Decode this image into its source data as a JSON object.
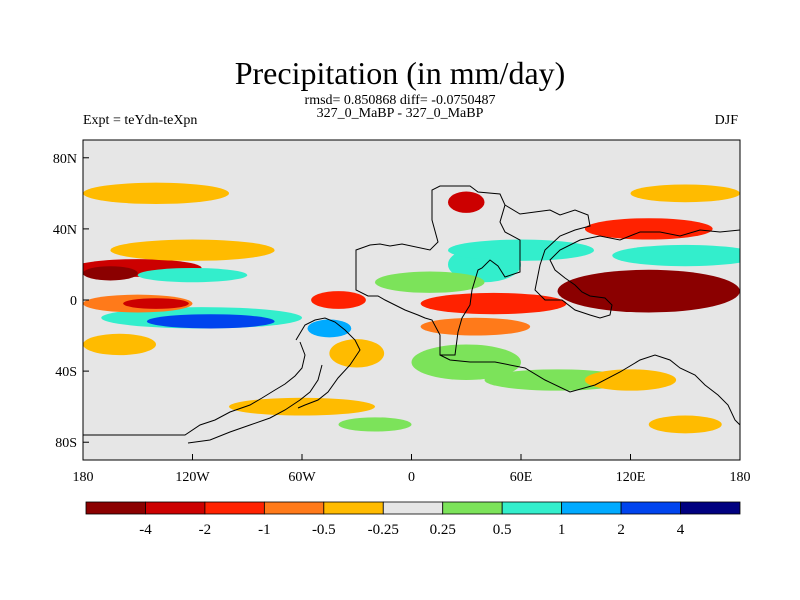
{
  "title": "Precipitation (in mm/day)",
  "stats": "rmsd= 0.850868 diff= -0.0750487",
  "subtitle": "327_0_MaBP - 327_0_MaBP",
  "left_string": "Expt = teYdn-teXpn",
  "right_string": "DJF",
  "chart_data": {
    "type": "heatmap",
    "title": "Precipitation (in mm/day)",
    "projection": "cylindrical-equidistant",
    "xlim": [
      -180,
      180
    ],
    "ylim": [
      -90,
      90
    ],
    "x_ticks": [
      {
        "value": -180,
        "label": "180"
      },
      {
        "value": -120,
        "label": "120W"
      },
      {
        "value": -60,
        "label": "60W"
      },
      {
        "value": 0,
        "label": "0"
      },
      {
        "value": 60,
        "label": "60E"
      },
      {
        "value": 120,
        "label": "120E"
      },
      {
        "value": 180,
        "label": "180"
      }
    ],
    "y_ticks": [
      {
        "value": 80,
        "label": "80N"
      },
      {
        "value": 40,
        "label": "40N"
      },
      {
        "value": 0,
        "label": "0"
      },
      {
        "value": -40,
        "label": "40S"
      },
      {
        "value": -80,
        "label": "80S"
      }
    ],
    "colorbar": {
      "levels": [
        "-4",
        "-2",
        "-1",
        "-0.5",
        "-0.25",
        "0.25",
        "0.5",
        "1",
        "2",
        "4"
      ],
      "colors": [
        "#8b0000",
        "#cc0000",
        "#ff2200",
        "#ff7a1a",
        "#ffbb00",
        "#e6e6e6",
        "#7ce35a",
        "#33eecc",
        "#00aaff",
        "#0044ee",
        "#000080"
      ]
    },
    "anomalies": [
      {
        "lon": -150,
        "lat": 18,
        "rx": 35,
        "ry": 5,
        "level": 1
      },
      {
        "lon": -165,
        "lat": 15,
        "rx": 15,
        "ry": 4,
        "level": 0
      },
      {
        "lon": -120,
        "lat": 28,
        "rx": 45,
        "ry": 6,
        "level": 4
      },
      {
        "lon": -140,
        "lat": 60,
        "rx": 40,
        "ry": 6,
        "level": 4
      },
      {
        "lon": -120,
        "lat": 14,
        "rx": 30,
        "ry": 4,
        "level": 7
      },
      {
        "lon": -115,
        "lat": -10,
        "rx": 55,
        "ry": 6,
        "level": 7
      },
      {
        "lon": -110,
        "lat": -12,
        "rx": 35,
        "ry": 4,
        "level": 9
      },
      {
        "lon": -150,
        "lat": -2,
        "rx": 30,
        "ry": 5,
        "level": 3
      },
      {
        "lon": -140,
        "lat": -2,
        "rx": 18,
        "ry": 3,
        "level": 1
      },
      {
        "lon": -40,
        "lat": 0,
        "rx": 15,
        "ry": 5,
        "level": 2
      },
      {
        "lon": -45,
        "lat": -16,
        "rx": 12,
        "ry": 5,
        "level": 8
      },
      {
        "lon": -160,
        "lat": -25,
        "rx": 20,
        "ry": 6,
        "level": 4
      },
      {
        "lon": 30,
        "lat": 55,
        "rx": 10,
        "ry": 6,
        "level": 1
      },
      {
        "lon": 40,
        "lat": 20,
        "rx": 20,
        "ry": 10,
        "level": 7
      },
      {
        "lon": 10,
        "lat": 10,
        "rx": 30,
        "ry": 6,
        "level": 6
      },
      {
        "lon": 45,
        "lat": -2,
        "rx": 40,
        "ry": 6,
        "level": 2
      },
      {
        "lon": 35,
        "lat": -15,
        "rx": 30,
        "ry": 5,
        "level": 3
      },
      {
        "lon": 60,
        "lat": 28,
        "rx": 40,
        "ry": 6,
        "level": 7
      },
      {
        "lon": 130,
        "lat": 5,
        "rx": 50,
        "ry": 12,
        "level": 0
      },
      {
        "lon": 150,
        "lat": 25,
        "rx": 40,
        "ry": 6,
        "level": 7
      },
      {
        "lon": 130,
        "lat": 40,
        "rx": 35,
        "ry": 6,
        "level": 2
      },
      {
        "lon": 150,
        "lat": 60,
        "rx": 30,
        "ry": 5,
        "level": 4
      },
      {
        "lon": 30,
        "lat": -35,
        "rx": 30,
        "ry": 10,
        "level": 6
      },
      {
        "lon": 80,
        "lat": -45,
        "rx": 40,
        "ry": 6,
        "level": 6
      },
      {
        "lon": 120,
        "lat": -45,
        "rx": 25,
        "ry": 6,
        "level": 4
      },
      {
        "lon": -30,
        "lat": -30,
        "rx": 15,
        "ry": 8,
        "level": 4
      },
      {
        "lon": -60,
        "lat": -60,
        "rx": 40,
        "ry": 5,
        "level": 4
      },
      {
        "lon": -20,
        "lat": -70,
        "rx": 20,
        "ry": 4,
        "level": 6
      },
      {
        "lon": 150,
        "lat": -70,
        "rx": 20,
        "ry": 5,
        "level": 4
      }
    ]
  }
}
